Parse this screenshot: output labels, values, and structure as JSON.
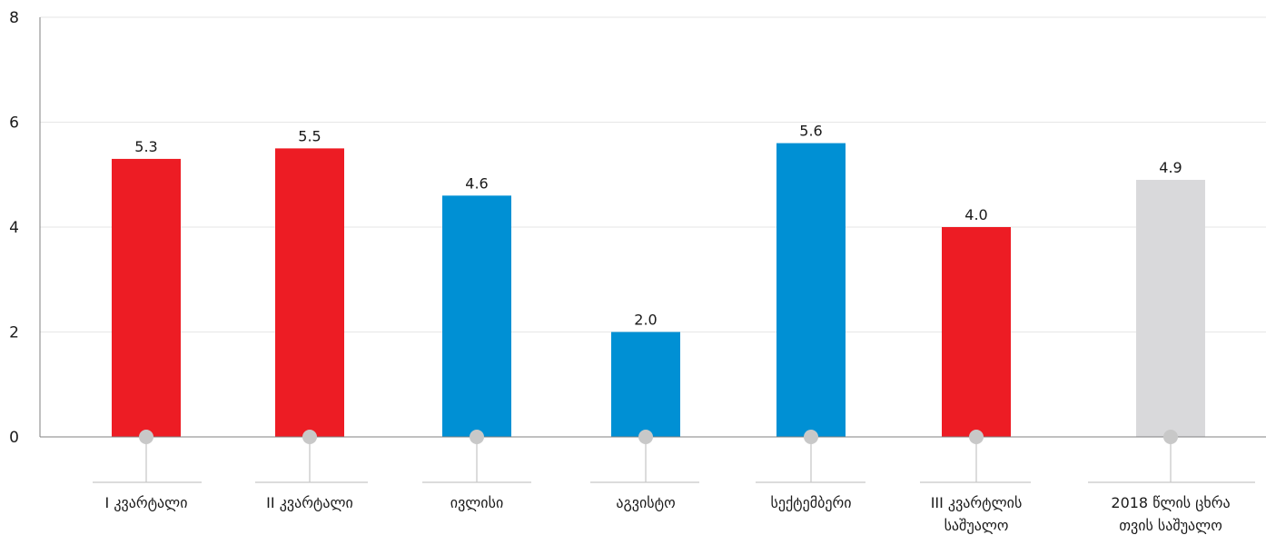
{
  "chart_data": {
    "type": "bar",
    "categories": [
      [
        "I კვარტალი"
      ],
      [
        "II კვარტალი"
      ],
      [
        "ივლისი"
      ],
      [
        "აგვისტო"
      ],
      [
        "სექტემბერი"
      ],
      [
        "III კვარტლის",
        "საშუალო"
      ],
      [
        "2018 წლის ცხრა",
        "თვის საშუალო"
      ]
    ],
    "values": [
      5.3,
      5.5,
      4.6,
      2.0,
      5.6,
      4.0,
      4.9
    ],
    "value_labels": [
      "5.3",
      "5.5",
      "4.6",
      "2.0",
      "5.6",
      "4.0",
      "4.9"
    ],
    "bar_colors": [
      "#ed1c24",
      "#ed1c24",
      "#0090d4",
      "#0090d4",
      "#0090d4",
      "#ed1c24",
      "#d9d9db"
    ],
    "ylim": [
      0,
      8
    ],
    "yticks": [
      "0",
      "2",
      "4",
      "6",
      "8"
    ],
    "grid": true,
    "legend": "none",
    "title": "",
    "xlabel": "",
    "ylabel": ""
  },
  "colors": {
    "red": "#ed1c24",
    "blue": "#0090d4",
    "grey": "#d9d9db",
    "marker": "#c8c8c8",
    "grid": "#e6e6e6",
    "axis": "#808080"
  }
}
